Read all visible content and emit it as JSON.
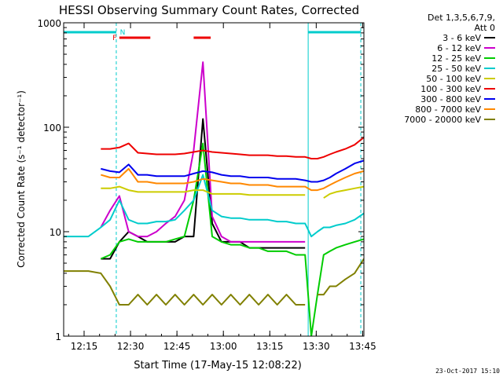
{
  "chart_data": {
    "type": "line",
    "title": "HESSI Observing Summary Count Rates, Corrected",
    "xlabel": "Start Time (17-May-15 12:08:22)",
    "ylabel": "Corrected Count Rate (s⁻¹ detector⁻¹)",
    "yscale": "log",
    "ylim": [
      1,
      1000
    ],
    "xlim_minutes": [
      0,
      97
    ],
    "x_ticks": [
      {
        "label": "12:15",
        "minutes": 6.6
      },
      {
        "label": "12:30",
        "minutes": 21.6
      },
      {
        "label": "12:45",
        "minutes": 36.6
      },
      {
        "label": "13:00",
        "minutes": 51.6
      },
      {
        "label": "13:15",
        "minutes": 66.6
      },
      {
        "label": "13:30",
        "minutes": 81.6
      },
      {
        "label": "13:45",
        "minutes": 96.6
      }
    ],
    "y_ticks": [
      {
        "label": "1",
        "value": 1
      },
      {
        "label": "10",
        "value": 10
      },
      {
        "label": "100",
        "value": 100
      },
      {
        "label": "1000",
        "value": 1000
      }
    ],
    "legend_header": [
      "Det 1,3,5,6,7,9,",
      "Att 0"
    ],
    "legend_placement": "right",
    "x": [
      0,
      3,
      8,
      12,
      15,
      18,
      21,
      24,
      27,
      30,
      33,
      36,
      39,
      42,
      45,
      48,
      51,
      54,
      57,
      60,
      63,
      66,
      69,
      72,
      75,
      78,
      80,
      82,
      84,
      86,
      88,
      91,
      94,
      97
    ],
    "series": [
      {
        "name": "3 - 6 keV",
        "color": "#000000",
        "values": [
          null,
          null,
          null,
          5.5,
          5.5,
          8,
          10,
          9,
          8,
          8,
          8,
          8,
          9,
          9,
          120,
          12,
          8,
          8,
          8,
          7,
          7,
          7,
          7,
          7,
          7,
          7,
          null,
          null,
          null,
          null,
          null,
          null,
          null,
          null
        ]
      },
      {
        "name": "6 - 12 keV",
        "color": "#cc00cc",
        "values": [
          null,
          null,
          null,
          11,
          16,
          22,
          10,
          9,
          9,
          10,
          12,
          14,
          20,
          60,
          420,
          14,
          9,
          8,
          8,
          8,
          8,
          8,
          8,
          8,
          8,
          8,
          null,
          null,
          null,
          null,
          null,
          null,
          null,
          null
        ]
      },
      {
        "name": "12 - 25 keV",
        "color": "#00cc00",
        "values": [
          null,
          null,
          null,
          5.5,
          6,
          8,
          8.5,
          8,
          8,
          8,
          8,
          8.5,
          9,
          20,
          70,
          9,
          8,
          7.5,
          7.5,
          7,
          7,
          6.5,
          6.5,
          6.5,
          6,
          6,
          1,
          2.5,
          6,
          6.5,
          7,
          7.5,
          8,
          8.5
        ]
      },
      {
        "name": "25 - 50 keV",
        "color": "#00cccc",
        "values": [
          9,
          9,
          9,
          11,
          13,
          20,
          13,
          12,
          12,
          12.5,
          12.5,
          13,
          16,
          20,
          35,
          16,
          14,
          13.5,
          13.5,
          13,
          13,
          13,
          12.5,
          12.5,
          12,
          12,
          9,
          10,
          11,
          11,
          11.5,
          12,
          13,
          15
        ]
      },
      {
        "name": "50 - 100 keV",
        "color": "#cccc00",
        "values": [
          null,
          null,
          null,
          26,
          26,
          27,
          25,
          24,
          24,
          24,
          24,
          24,
          24,
          25,
          25,
          23,
          23,
          23,
          23,
          22.5,
          22.5,
          22.5,
          22.5,
          22.5,
          22.5,
          22.5,
          null,
          null,
          21,
          23,
          24,
          25,
          26,
          27
        ]
      },
      {
        "name": "100 - 300 keV",
        "color": "#ee0000",
        "values": [
          null,
          null,
          null,
          62,
          62,
          64,
          70,
          57,
          56,
          55,
          55,
          55,
          56,
          58,
          60,
          58,
          57,
          56,
          55,
          54,
          54,
          54,
          53,
          53,
          52,
          52,
          50,
          50,
          52,
          55,
          58,
          62,
          68,
          80
        ]
      },
      {
        "name": "300 - 800 keV",
        "color": "#0000ee",
        "values": [
          null,
          null,
          null,
          40,
          38,
          37,
          44,
          35,
          35,
          34,
          34,
          34,
          34,
          36,
          38,
          37,
          35,
          34,
          34,
          33,
          33,
          33,
          32,
          32,
          32,
          31,
          30,
          30,
          31,
          33,
          36,
          40,
          45,
          48
        ]
      },
      {
        "name": "800 - 7000 keV",
        "color": "#ff8800",
        "values": [
          null,
          null,
          null,
          35,
          33,
          33,
          40,
          30,
          30,
          29,
          29,
          29,
          29,
          30,
          32,
          31,
          30,
          29,
          29,
          28,
          28,
          28,
          27,
          27,
          27,
          27,
          25,
          25,
          26,
          28,
          30,
          33,
          36,
          38
        ]
      },
      {
        "name": "7000 - 20000 keV",
        "color": "#808000",
        "values": [
          4.2,
          4.2,
          4.2,
          4,
          3,
          2,
          2,
          2.5,
          2,
          2.5,
          2,
          2.5,
          2,
          2.5,
          2,
          2.5,
          2,
          2.5,
          2,
          2.5,
          2,
          2.5,
          2,
          2.5,
          2,
          2,
          null,
          2.5,
          2.5,
          3,
          3,
          3.5,
          4,
          5.5
        ]
      }
    ],
    "vertical_lines": [
      {
        "minutes": 0,
        "style": "solid",
        "color": "#00cccc"
      },
      {
        "minutes": 17,
        "style": "dashed",
        "color": "#00cccc"
      },
      {
        "minutes": 79,
        "style": "solid",
        "color": "#00cccc"
      },
      {
        "minutes": 96,
        "style": "dashed",
        "color": "#00cccc"
      }
    ],
    "flag_bars": [
      {
        "label": "",
        "color": "#00cccc",
        "start_minutes": 0,
        "end_minutes": 17,
        "level": "upper"
      },
      {
        "label": "",
        "color": "#00cccc",
        "start_minutes": 79,
        "end_minutes": 96,
        "level": "upper"
      },
      {
        "label": "F",
        "color": "#ee0000",
        "start_minutes": 18,
        "end_minutes": 28,
        "level": "lower"
      },
      {
        "label": "",
        "color": "#ee0000",
        "start_minutes": 42,
        "end_minutes": 47.5,
        "level": "lower"
      }
    ],
    "flag_label_n": "N",
    "footer_date": "23-Oct-2017 15:10"
  }
}
